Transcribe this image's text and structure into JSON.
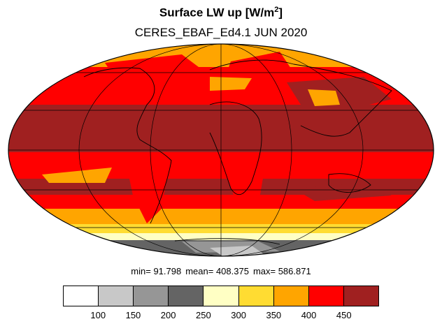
{
  "title_main": "Surface LW up [W/m",
  "title_sup": "2",
  "title_close": "]",
  "subtitle": "CERES_EBAF_Ed4.1 JUN 2020",
  "stats": {
    "min": "min= 91.798",
    "mean": "mean= 408.375",
    "max": "max= 586.871"
  },
  "colorbar": {
    "colors": [
      "#ffffff",
      "#c8c8c8",
      "#969696",
      "#646464",
      "#ffffc4",
      "#ffdc32",
      "#ffa500",
      "#ff0000",
      "#a02020"
    ],
    "tick_labels": [
      "100",
      "150",
      "200",
      "250",
      "300",
      "350",
      "400",
      "450"
    ]
  },
  "map": {
    "projection": "mollweide",
    "variable": "surface longwave upward flux",
    "units": "W/m2"
  }
}
